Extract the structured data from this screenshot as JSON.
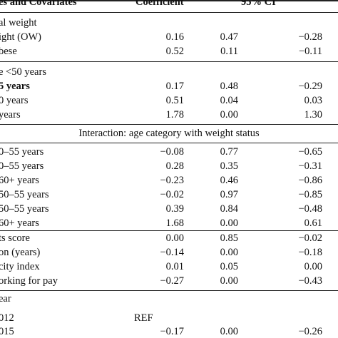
{
  "header": {
    "col0": "es and Covariates",
    "col1": "Coefficient",
    "col2": "95% CI"
  },
  "sections": [
    {
      "title": "al weight",
      "rows": [
        {
          "label": "ight (OW)",
          "coef": "0.16",
          "p": "0.47",
          "ci": "−0.28"
        },
        {
          "label": "bese",
          "coef": "0.52",
          "p": "0.11",
          "ci": "−0.11"
        }
      ]
    },
    {
      "title": "e <50 years",
      "rows": [
        {
          "label": "5 years",
          "coef": "0.17",
          "p": "0.48",
          "ci": "−0.29"
        },
        {
          "label": "0 years",
          "coef": "0.51",
          "p": "0.04",
          "ci": "0.03"
        },
        {
          "label": "years",
          "coef": "1.78",
          "p": "0.00",
          "ci": "1.30"
        }
      ]
    },
    {
      "title": "Interaction: age category with weight status",
      "rows": []
    },
    {
      "title": "",
      "rows": [
        {
          "label": "0–55 years",
          "coef": "−0.08",
          "p": "0.77",
          "ci": "−0.65"
        },
        {
          "label": "0–55 years",
          "coef": "0.28",
          "p": "0.35",
          "ci": "−0.31"
        },
        {
          "label": "60+ years",
          "coef": "−0.23",
          "p": "0.46",
          "ci": "−0.86"
        },
        {
          "label": "50–55 years",
          "coef": "−0.02",
          "p": "0.97",
          "ci": "−0.85"
        },
        {
          "label": "50–55 years",
          "coef": "0.39",
          "p": "0.84",
          "ci": "−0.48"
        },
        {
          "label": "60+ years",
          "coef": "1.68",
          "p": "0.00",
          "ci": "0.61"
        }
      ]
    },
    {
      "title": "",
      "rows": [
        {
          "label": "ts score",
          "coef": "0.00",
          "p": "0.85",
          "ci": "−0.02"
        },
        {
          "label": "on (years)",
          "coef": "−0.14",
          "p": "0.00",
          "ci": "−0.18"
        },
        {
          "label": "city index",
          "coef": "0.01",
          "p": "0.05",
          "ci": "0.00"
        },
        {
          "label": "orking for pay",
          "coef": "−0.27",
          "p": "0.00",
          "ci": "−0.43"
        }
      ]
    },
    {
      "title": "ear",
      "rows": [
        {
          "label": "012",
          "coef": "REF",
          "p": "",
          "ci": ""
        },
        {
          "label": "015",
          "coef": "−0.17",
          "p": "0.00",
          "ci": "−0.26"
        }
      ]
    }
  ]
}
